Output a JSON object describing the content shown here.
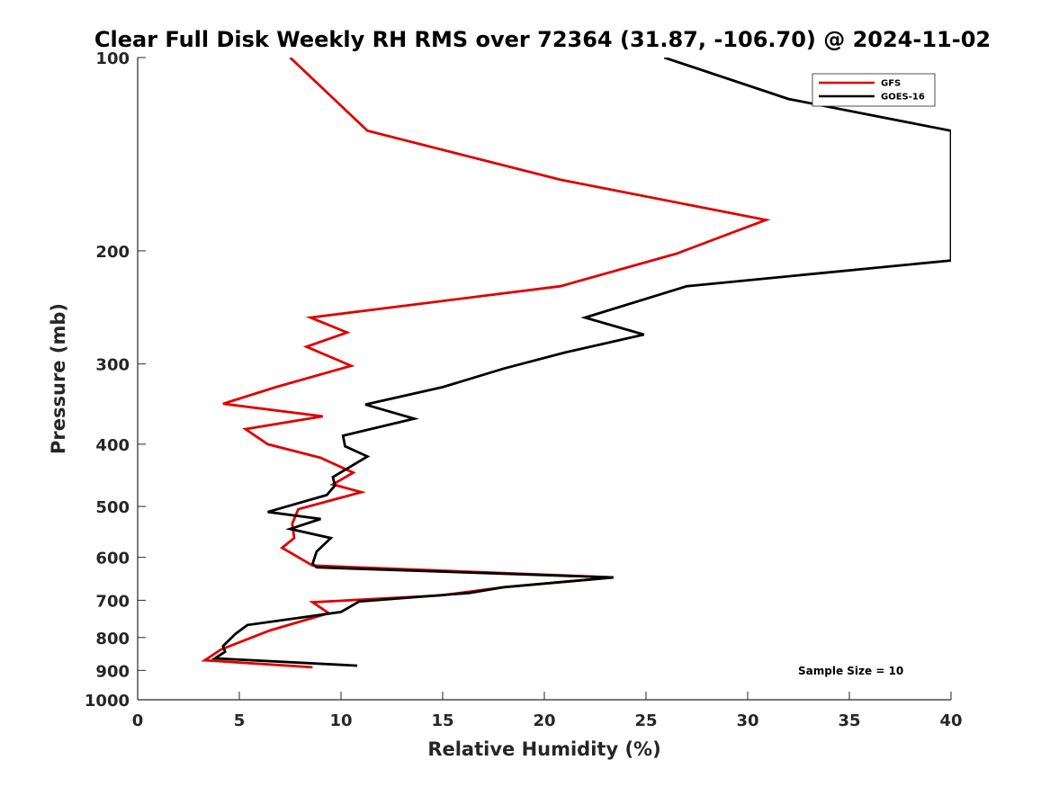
{
  "chart_data": {
    "type": "line",
    "title": "Clear Full Disk Weekly RH RMS over 72364 (31.87, -106.70) @ 2024-11-02",
    "xlabel": "Relative Humidity (%)",
    "ylabel": "Pressure (mb)",
    "xlim": [
      0,
      40
    ],
    "ylim": [
      100,
      1000
    ],
    "y_scale": "log",
    "y_reversed": true,
    "x_ticks": [
      0,
      5,
      10,
      15,
      20,
      25,
      30,
      35,
      40
    ],
    "y_ticks": [
      100,
      200,
      300,
      400,
      500,
      600,
      700,
      800,
      900,
      1000
    ],
    "grid": false,
    "legend_position": "top-right",
    "annotation": "Sample Size = 10",
    "series": [
      {
        "name": "GFS",
        "color": "#e00000",
        "points": [
          [
            7.5,
            100
          ],
          [
            11.3,
            130
          ],
          [
            20.8,
            155
          ],
          [
            30.9,
            179
          ],
          [
            26.5,
            202
          ],
          [
            20.8,
            227
          ],
          [
            8.5,
            254
          ],
          [
            10.3,
            268
          ],
          [
            8.3,
            282
          ],
          [
            10.5,
            302
          ],
          [
            6.8,
            326
          ],
          [
            4.2,
            346
          ],
          [
            9.1,
            362
          ],
          [
            5.3,
            379
          ],
          [
            6.4,
            400
          ],
          [
            9.0,
            420
          ],
          [
            10.6,
            443
          ],
          [
            9.6,
            462
          ],
          [
            11.0,
            475
          ],
          [
            7.9,
            505
          ],
          [
            7.6,
            532
          ],
          [
            7.7,
            560
          ],
          [
            7.1,
            580
          ],
          [
            8.6,
            618
          ],
          [
            23.4,
            645
          ],
          [
            18.0,
            668
          ],
          [
            14.9,
            688
          ],
          [
            8.6,
            705
          ],
          [
            9.4,
            733
          ],
          [
            6.5,
            780
          ],
          [
            4.1,
            835
          ],
          [
            3.3,
            868
          ],
          [
            8.6,
            890
          ]
        ]
      },
      {
        "name": "GOES-16",
        "color": "#000000",
        "points": [
          [
            25.9,
            100
          ],
          [
            32.0,
            116
          ],
          [
            40.0,
            130
          ],
          [
            40.0,
            207
          ],
          [
            27.0,
            227
          ],
          [
            22.0,
            254
          ],
          [
            24.9,
            270
          ],
          [
            21.0,
            288
          ],
          [
            18.0,
            305
          ],
          [
            15.0,
            326
          ],
          [
            11.2,
            347
          ],
          [
            13.6,
            365
          ],
          [
            10.1,
            388
          ],
          [
            10.2,
            403
          ],
          [
            11.3,
            418
          ],
          [
            9.6,
            450
          ],
          [
            9.7,
            464
          ],
          [
            9.3,
            480
          ],
          [
            6.4,
            510
          ],
          [
            9.0,
            523
          ],
          [
            7.5,
            542
          ],
          [
            9.5,
            560
          ],
          [
            8.8,
            588
          ],
          [
            8.6,
            614
          ],
          [
            8.8,
            622
          ],
          [
            23.4,
            645
          ],
          [
            18.0,
            668
          ],
          [
            16.3,
            682
          ],
          [
            10.9,
            703
          ],
          [
            10.0,
            730
          ],
          [
            5.4,
            765
          ],
          [
            4.9,
            786
          ],
          [
            4.8,
            790
          ],
          [
            4.2,
            825
          ],
          [
            4.3,
            842
          ],
          [
            3.8,
            862
          ],
          [
            10.8,
            885
          ]
        ]
      }
    ]
  }
}
